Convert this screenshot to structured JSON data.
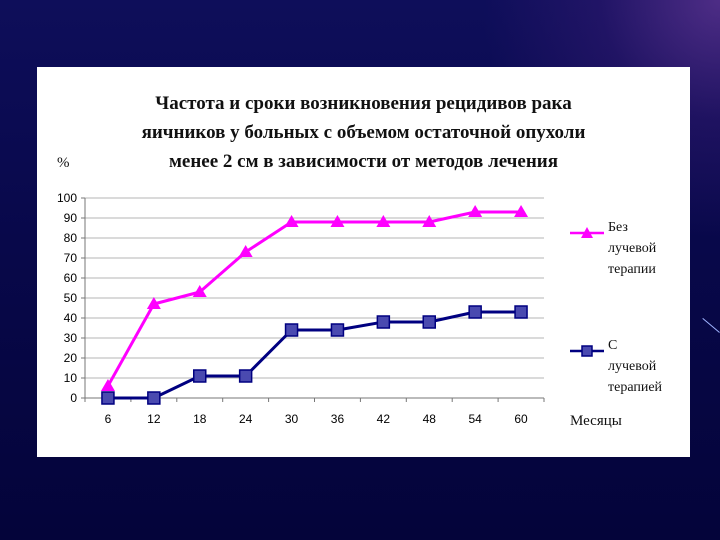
{
  "chart_data": {
    "type": "line",
    "title": "Частота и сроки возникновения рецидивов рака\nяичников у больных с объемом остаточной опухоли\nменее 2 см в зависимости от методов лечения",
    "ylabel": "%",
    "xlabel": "Месяцы",
    "categories": [
      "6",
      "12",
      "18",
      "24",
      "30",
      "36",
      "42",
      "48",
      "54",
      "60"
    ],
    "ylim": [
      0,
      100
    ],
    "yticks": [
      0,
      10,
      20,
      30,
      40,
      50,
      60,
      70,
      80,
      90,
      100
    ],
    "grid": true,
    "legend_position": "right",
    "series": [
      {
        "name": "Без\nлучевой\nтерапии",
        "color": "#ff00ff",
        "marker": "triangle",
        "values": [
          6,
          47,
          53,
          73,
          88,
          88,
          88,
          88,
          93,
          93
        ]
      },
      {
        "name": "С\nлучевой\nтерапией",
        "color": "#000080",
        "marker": "square",
        "values": [
          0,
          0,
          11,
          11,
          34,
          34,
          38,
          38,
          43,
          43
        ]
      }
    ]
  }
}
